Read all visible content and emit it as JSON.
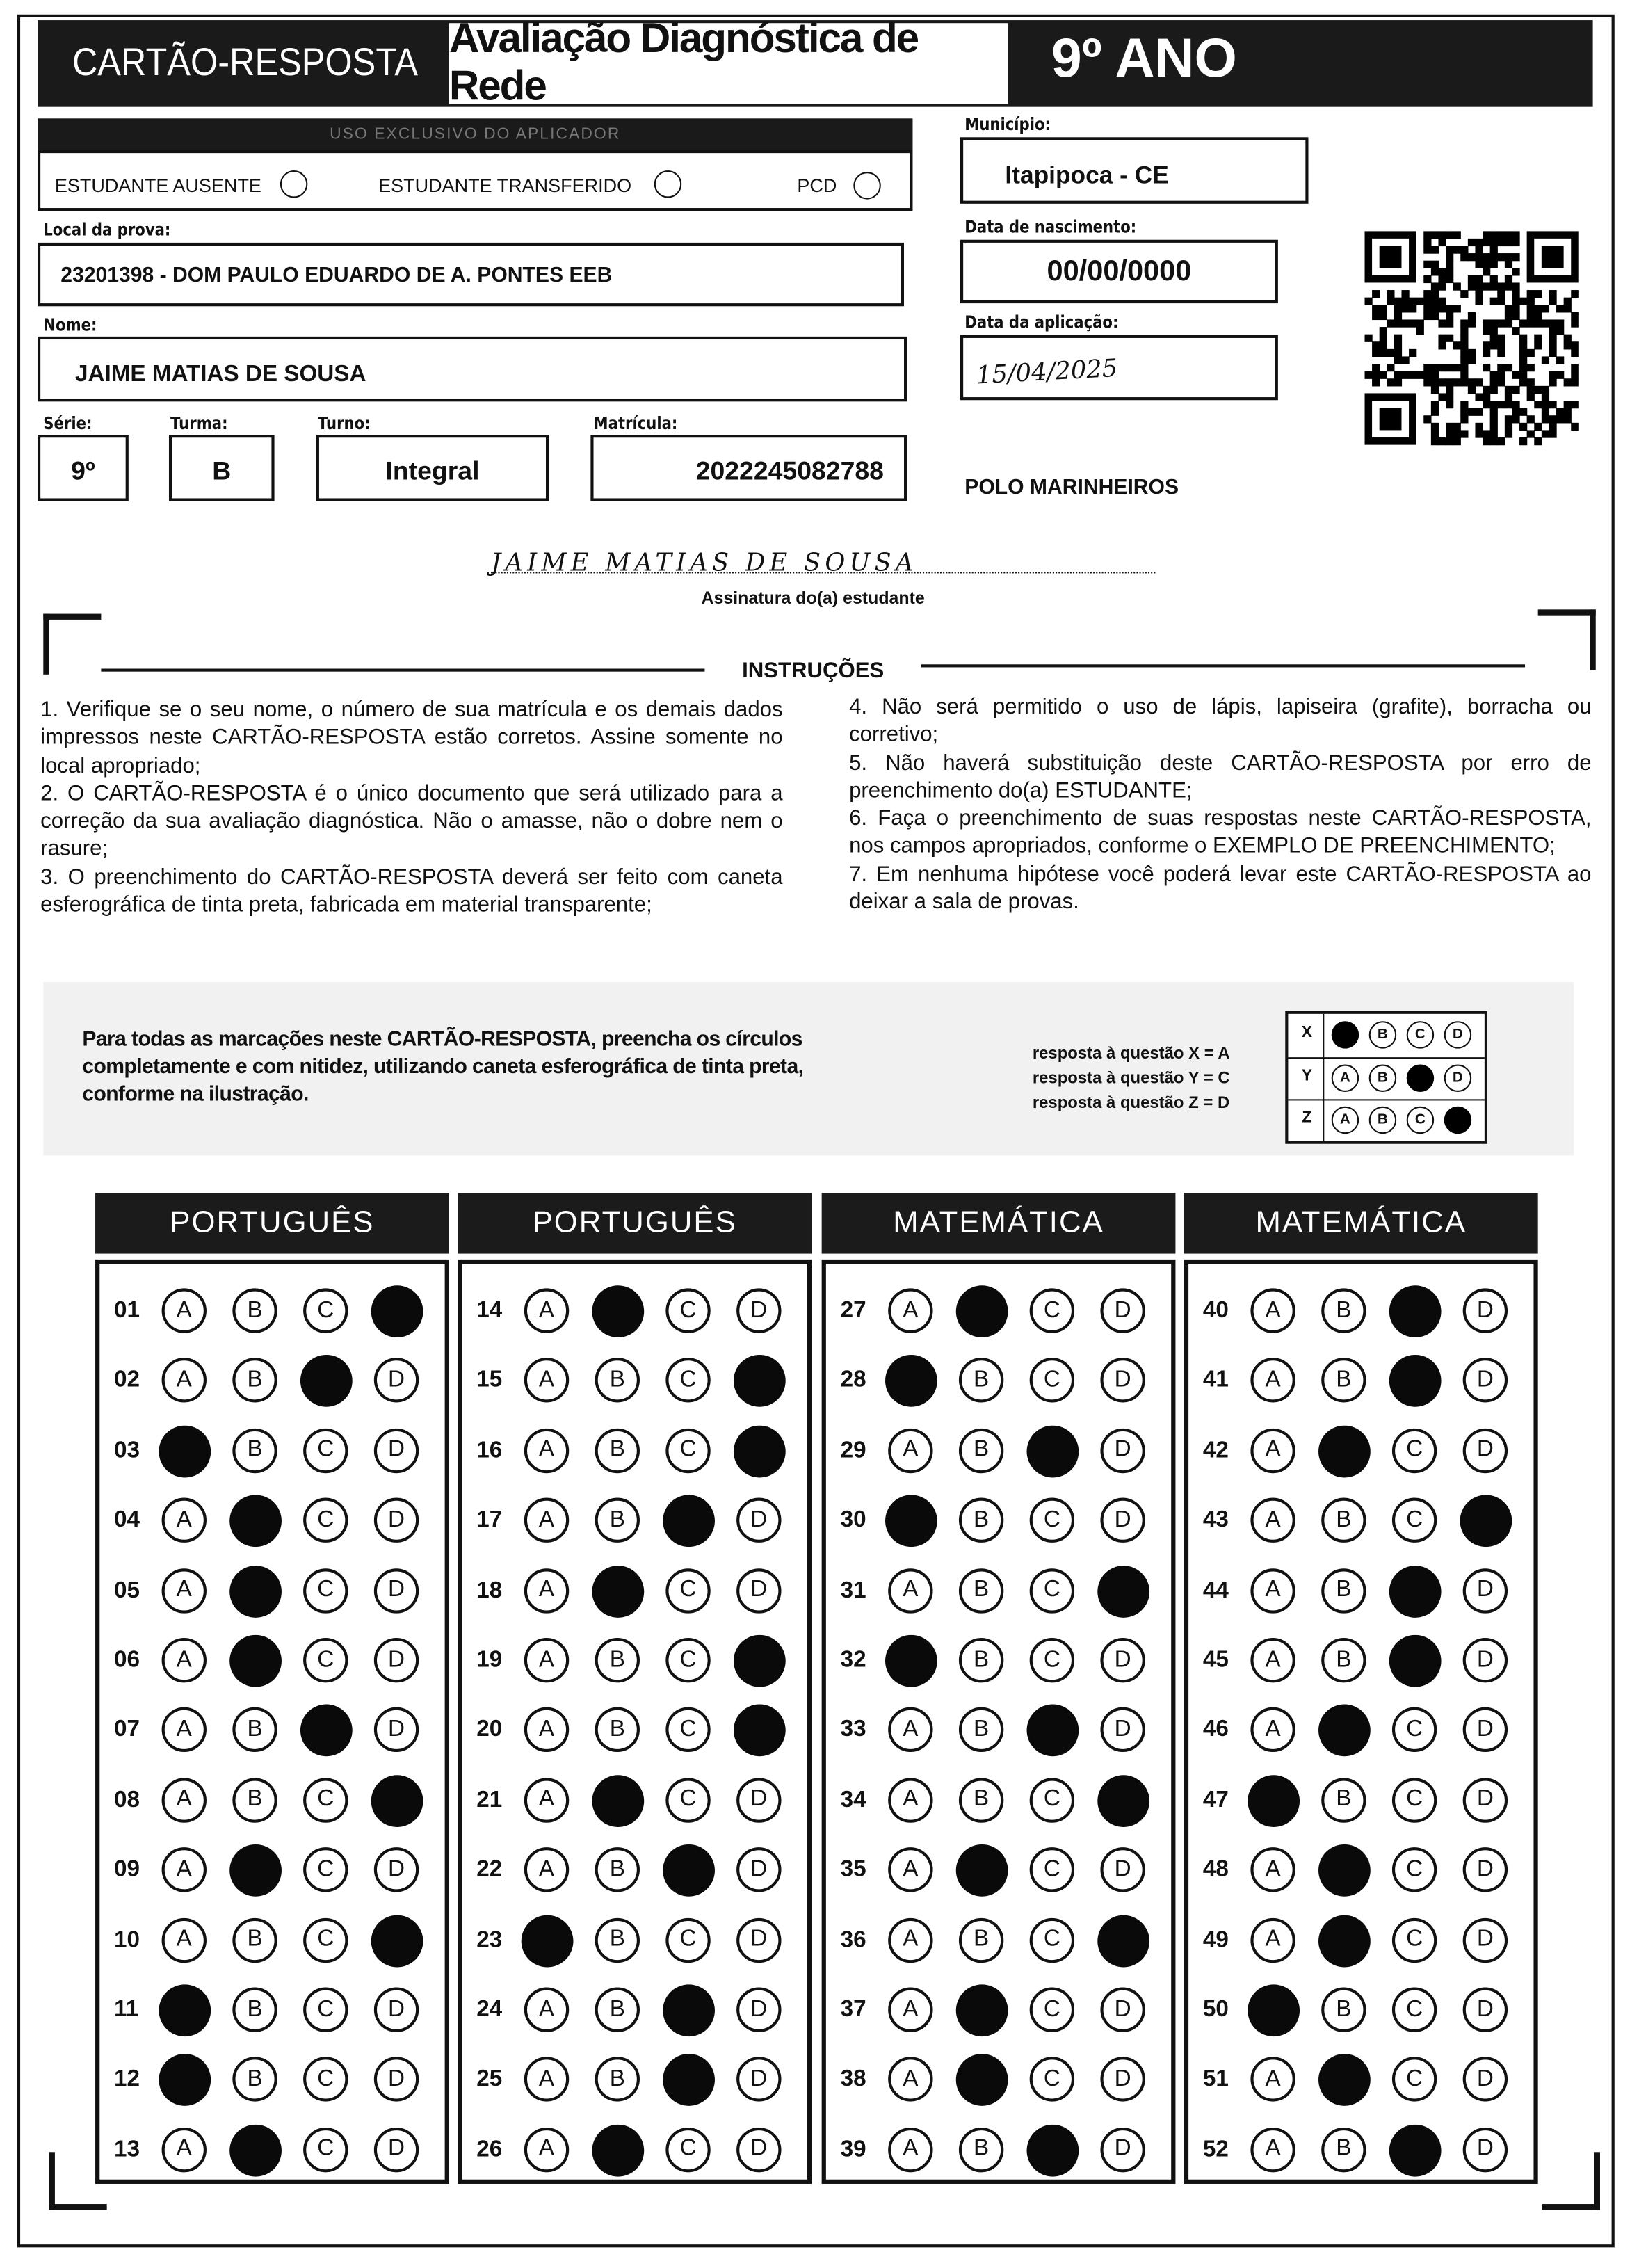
{
  "header": {
    "title": "CARTÃO-RESPOSTA",
    "subtitle": "Avaliação Diagnóstica de Rede",
    "grade": "9º ANO"
  },
  "applicator": {
    "title": "USO EXCLUSIVO DO APLICADOR",
    "options": [
      "ESTUDANTE AUSENTE",
      "ESTUDANTE TRANSFERIDO",
      "PCD"
    ]
  },
  "fields": {
    "municipality": {
      "label": "Município:",
      "value": "Itapipoca - CE"
    },
    "school": {
      "label": "Local da prova:",
      "value": "23201398 - DOM PAULO EDUARDO DE A. PONTES EEB"
    },
    "birth_date": {
      "label": "Data de nascimento:",
      "value": "00/00/0000"
    },
    "name": {
      "label": "Nome:",
      "value": "JAIME MATIAS DE SOUSA"
    },
    "application_date": {
      "label": "Data da aplicação:",
      "value": "15/04/2025"
    },
    "grade": {
      "label": "Série:",
      "value": "9º"
    },
    "class": {
      "label": "Turma:",
      "value": "B"
    },
    "shift": {
      "label": "Turno:",
      "value": "Integral"
    },
    "enrollment": {
      "label": "Matrícula:",
      "value": "2022245082788"
    }
  },
  "polo": "POLO MARINHEIROS",
  "signature": {
    "value": "JAIME MATIAS DE SOUSA",
    "label": "Assinatura do(a) estudante"
  },
  "instructions": {
    "title": "INSTRUÇÕES",
    "items": [
      "1. Verifique se o seu nome, o número de sua matrícula e os demais dados impressos neste CARTÃO-RESPOSTA estão corretos. Assine somente no local apropriado;",
      "2. O CARTÃO-RESPOSTA é o único documento que será utilizado para a correção da sua avaliação diagnóstica. Não o amasse, não o dobre nem o rasure;",
      "3. O preenchimento do CARTÃO-RESPOSTA deverá ser feito com caneta esferográfica de tinta preta, fabricada em material transparente;",
      "4. Não será permitido o uso de lápis, lapiseira (grafite), borracha ou corretivo;",
      "5. Não haverá substituição deste CARTÃO-RESPOSTA por erro de preenchimento do(a) ESTUDANTE;",
      "6. Faça o preenchimento de suas respostas neste CARTÃO-RESPOSTA, nos campos apropriados, conforme o EXEMPLO DE PREENCHIMENTO;",
      "7. Em nenhuma hipótese você poderá levar este CARTÃO-RESPOSTA ao deixar a sala de provas."
    ]
  },
  "example": {
    "text": "Para todas as marcações neste CARTÃO-RESPOSTA, preencha os círculos completamente e com nitidez, utilizando caneta esferográfica de tinta preta, conforme na ilustração.",
    "notes": [
      "resposta à questão X = A",
      "resposta à questão Y = C",
      "resposta à questão Z = D"
    ],
    "rows": [
      {
        "label": "X",
        "options": [
          null,
          "B",
          "C",
          "D"
        ]
      },
      {
        "label": "Y",
        "options": [
          "A",
          "B",
          null,
          "D"
        ]
      },
      {
        "label": "Z",
        "options": [
          "A",
          "B",
          "C",
          null
        ]
      }
    ]
  },
  "sections": [
    {
      "title": "PORTUGUÊS",
      "questions": [
        {
          "number": "01",
          "options": [
            "A",
            "B",
            "C",
            null
          ]
        },
        {
          "number": "02",
          "options": [
            "A",
            "B",
            null,
            "D"
          ]
        },
        {
          "number": "03",
          "options": [
            null,
            "B",
            "C",
            "D"
          ]
        },
        {
          "number": "04",
          "options": [
            "A",
            null,
            "C",
            "D"
          ]
        },
        {
          "number": "05",
          "options": [
            "A",
            null,
            "C",
            "D"
          ]
        },
        {
          "number": "06",
          "options": [
            "A",
            null,
            "C",
            "D"
          ]
        },
        {
          "number": "07",
          "options": [
            "A",
            "B",
            null,
            "D"
          ]
        },
        {
          "number": "08",
          "options": [
            "A",
            "B",
            "C",
            null
          ]
        },
        {
          "number": "09",
          "options": [
            "A",
            null,
            "C",
            "D"
          ]
        },
        {
          "number": "10",
          "options": [
            "A",
            "B",
            "C",
            null
          ]
        },
        {
          "number": "11",
          "options": [
            null,
            "B",
            "C",
            "D"
          ]
        },
        {
          "number": "12",
          "options": [
            null,
            "B",
            "C",
            "D"
          ]
        },
        {
          "number": "13",
          "options": [
            "A",
            null,
            "C",
            "D"
          ]
        }
      ]
    },
    {
      "title": "PORTUGUÊS",
      "questions": [
        {
          "number": "14",
          "options": [
            "A",
            null,
            "C",
            "D"
          ]
        },
        {
          "number": "15",
          "options": [
            "A",
            "B",
            "C",
            null
          ]
        },
        {
          "number": "16",
          "options": [
            "A",
            "B",
            "C",
            null
          ]
        },
        {
          "number": "17",
          "options": [
            "A",
            "B",
            null,
            "D"
          ]
        },
        {
          "number": "18",
          "options": [
            "A",
            null,
            "C",
            "D"
          ]
        },
        {
          "number": "19",
          "options": [
            "A",
            "B",
            "C",
            null
          ]
        },
        {
          "number": "20",
          "options": [
            "A",
            "B",
            "C",
            null
          ]
        },
        {
          "number": "21",
          "options": [
            "A",
            null,
            "C",
            "D"
          ]
        },
        {
          "number": "22",
          "options": [
            "A",
            "B",
            null,
            "D"
          ]
        },
        {
          "number": "23",
          "options": [
            null,
            "B",
            "C",
            "D"
          ]
        },
        {
          "number": "24",
          "options": [
            "A",
            "B",
            null,
            "D"
          ]
        },
        {
          "number": "25",
          "options": [
            "A",
            "B",
            null,
            "D"
          ]
        },
        {
          "number": "26",
          "options": [
            "A",
            null,
            "C",
            "D"
          ]
        }
      ]
    },
    {
      "title": "MATEMÁTICA",
      "questions": [
        {
          "number": "27",
          "options": [
            "A",
            null,
            "C",
            "D"
          ]
        },
        {
          "number": "28",
          "options": [
            null,
            "B",
            "C",
            "D"
          ]
        },
        {
          "number": "29",
          "options": [
            "A",
            "B",
            null,
            "D"
          ]
        },
        {
          "number": "30",
          "options": [
            null,
            "B",
            "C",
            "D"
          ]
        },
        {
          "number": "31",
          "options": [
            "A",
            "B",
            "C",
            null
          ]
        },
        {
          "number": "32",
          "options": [
            null,
            "B",
            "C",
            "D"
          ]
        },
        {
          "number": "33",
          "options": [
            "A",
            "B",
            null,
            "D"
          ]
        },
        {
          "number": "34",
          "options": [
            "A",
            "B",
            "C",
            null
          ]
        },
        {
          "number": "35",
          "options": [
            "A",
            null,
            "C",
            "D"
          ]
        },
        {
          "number": "36",
          "options": [
            "A",
            "B",
            "C",
            null
          ]
        },
        {
          "number": "37",
          "options": [
            "A",
            null,
            "C",
            "D"
          ]
        },
        {
          "number": "38",
          "options": [
            "A",
            null,
            "C",
            "D"
          ]
        },
        {
          "number": "39",
          "options": [
            "A",
            "B",
            null,
            "D"
          ]
        }
      ]
    },
    {
      "title": "MATEMÁTICA",
      "questions": [
        {
          "number": "40",
          "options": [
            "A",
            "B",
            null,
            "D"
          ]
        },
        {
          "number": "41",
          "options": [
            "A",
            "B",
            null,
            "D"
          ]
        },
        {
          "number": "42",
          "options": [
            "A",
            null,
            "C",
            "D"
          ]
        },
        {
          "number": "43",
          "options": [
            "A",
            "B",
            "C",
            null
          ]
        },
        {
          "number": "44",
          "options": [
            "A",
            "B",
            null,
            "D"
          ]
        },
        {
          "number": "45",
          "options": [
            "A",
            "B",
            null,
            "D"
          ]
        },
        {
          "number": "46",
          "options": [
            "A",
            null,
            "C",
            "D"
          ]
        },
        {
          "number": "47",
          "options": [
            null,
            "B",
            "C",
            "D"
          ]
        },
        {
          "number": "48",
          "options": [
            "A",
            null,
            "C",
            "D"
          ]
        },
        {
          "number": "49",
          "options": [
            "A",
            null,
            "C",
            "D"
          ]
        },
        {
          "number": "50",
          "options": [
            null,
            "B",
            "C",
            "D"
          ]
        },
        {
          "number": "51",
          "options": [
            "A",
            null,
            "C",
            "D"
          ]
        },
        {
          "number": "52",
          "options": [
            "A",
            "B",
            null,
            "D"
          ]
        }
      ]
    }
  ]
}
